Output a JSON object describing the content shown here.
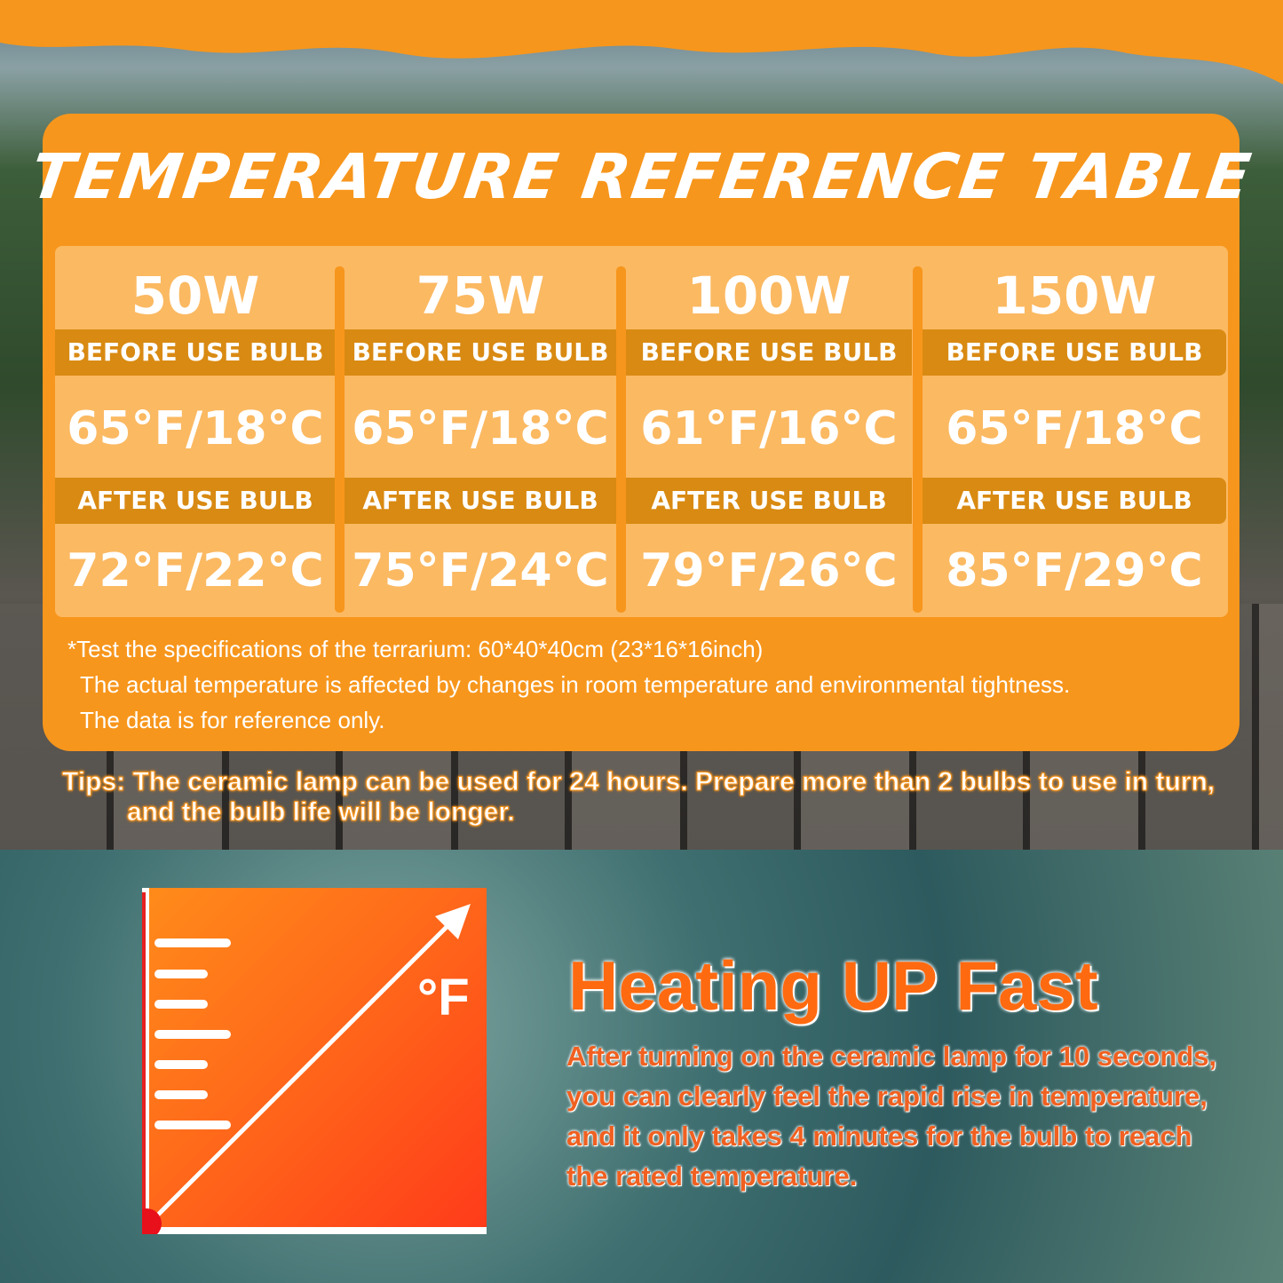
{
  "title": "TEMPERATURE REFERENCE TABLE",
  "columns": [
    {
      "wattage": "50W",
      "before_label": "BEFORE USE BULB",
      "before": "65°F/18°C",
      "after_label": "AFTER USE BULB",
      "after": "72°F/22°C"
    },
    {
      "wattage": "75W",
      "before_label": "BEFORE USE BULB",
      "before": "65°F/18°C",
      "after_label": "AFTER USE BULB",
      "after": "75°F/24°C"
    },
    {
      "wattage": "100W",
      "before_label": "BEFORE USE BULB",
      "before": "61°F/16°C",
      "after_label": "AFTER USE BULB",
      "after": "79°F/26°C"
    },
    {
      "wattage": "150W",
      "before_label": "BEFORE USE BULB",
      "before": "65°F/18°C",
      "after_label": "AFTER USE BULB",
      "after": "85°F/29°C"
    }
  ],
  "notes": [
    "*Test the specifications of the terrarium: 60*40*40cm (23*16*16inch)",
    "The actual temperature is affected by changes in room temperature and environmental tightness.",
    "The data is for reference only."
  ],
  "tips": [
    "Tips: The ceramic lamp can be used for 24 hours. Prepare more than 2 bulbs to use in turn,",
    "and the bulb life will be longer."
  ],
  "graphic": {
    "unit": "°F",
    "icon": "thermometer-rising-arrow-icon"
  },
  "heading": "Heating UP Fast",
  "description": [
    "After turning on the ceramic lamp for 10 seconds,",
    "you can clearly feel the rapid rise in temperature,",
    "and it only takes 4 minutes for the bulb to reach",
    "the rated temperature."
  ],
  "colors": {
    "orange": "#f7961c",
    "light_orange": "#fbb962",
    "band": "#d98a12",
    "heading": "#ff6a10"
  }
}
